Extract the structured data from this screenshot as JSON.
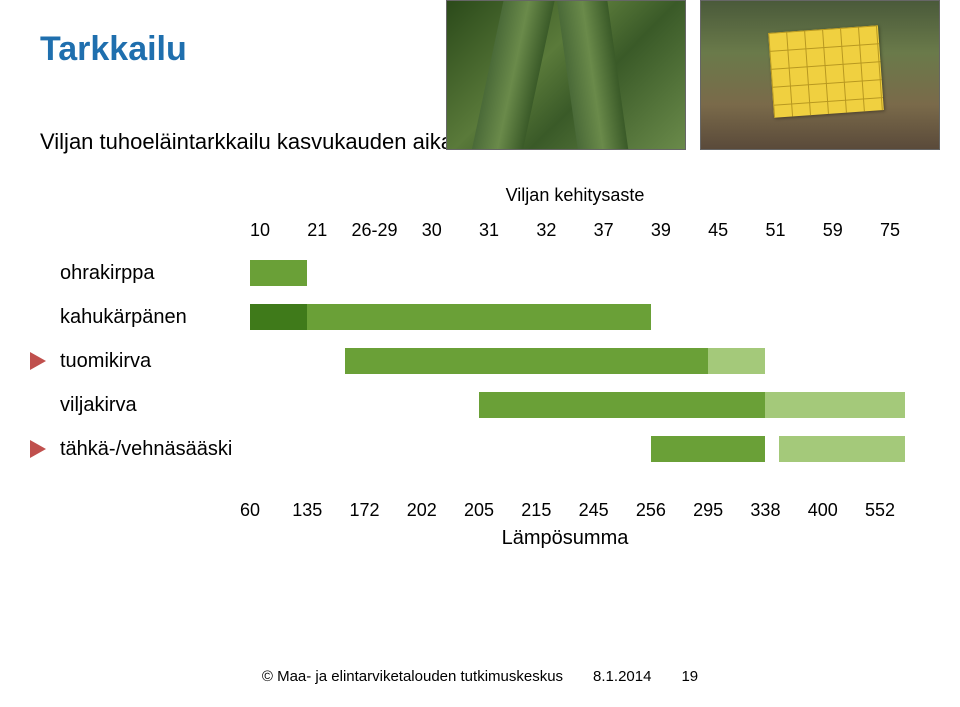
{
  "title": "Tarkkailu",
  "subtitle": "Viljan tuhoeläintarkkailu kasvukauden aikana",
  "top_axis_label": "Viljan kehitysaste",
  "bottom_axis_label": "Lämpösumma",
  "footer": {
    "copyright": "© Maa- ja elintarviketalouden tutkimuskeskus",
    "date": "8.1.2014",
    "page": "19"
  },
  "colors": {
    "green_main": "#6aa037",
    "green_dark": "#3f7a1a",
    "green_light": "#a4c97a",
    "title_blue": "#1f6fae",
    "marker_red": "#c0504d",
    "background": "#ffffff",
    "text": "#000000"
  },
  "axis_top": {
    "ticks": [
      "10",
      "21",
      "26-29",
      "30",
      "31",
      "32",
      "37",
      "39",
      "45",
      "51",
      "59",
      "75"
    ],
    "positions_pct": [
      0,
      9.09,
      18.18,
      27.27,
      36.36,
      45.45,
      54.55,
      63.64,
      72.73,
      81.82,
      90.91,
      100
    ]
  },
  "axis_bottom": {
    "ticks": [
      "60",
      "135",
      "172",
      "202",
      "205",
      "215",
      "245",
      "256",
      "295",
      "338",
      "400",
      "552"
    ],
    "positions_pct": [
      0,
      9.09,
      18.18,
      27.27,
      36.36,
      45.45,
      54.55,
      63.64,
      72.73,
      81.82,
      90.91,
      100
    ]
  },
  "pests": [
    {
      "name": "ohrakirppa",
      "marker": false,
      "segments": [
        {
          "start_pct": 0,
          "end_pct": 9.09,
          "color": "#6aa037"
        }
      ]
    },
    {
      "name": "kahukärpänen",
      "marker": false,
      "segments": [
        {
          "start_pct": 0,
          "end_pct": 9.09,
          "color": "#3f7a1a"
        },
        {
          "start_pct": 9.09,
          "end_pct": 63.64,
          "color": "#6aa037"
        }
      ]
    },
    {
      "name": "tuomikirva",
      "marker": true,
      "segments": [
        {
          "start_pct": 15,
          "end_pct": 72.73,
          "color": "#6aa037"
        },
        {
          "start_pct": 72.73,
          "end_pct": 81.82,
          "color": "#a4c97a"
        }
      ]
    },
    {
      "name": "viljakirva",
      "marker": false,
      "segments": [
        {
          "start_pct": 36.36,
          "end_pct": 81.82,
          "color": "#6aa037"
        },
        {
          "start_pct": 81.82,
          "end_pct": 104,
          "color": "#a4c97a"
        }
      ]
    },
    {
      "name": "tähkä-/vehnäsääski",
      "marker": true,
      "segments": [
        {
          "start_pct": 63.64,
          "end_pct": 81.82,
          "color": "#6aa037"
        },
        {
          "start_pct": 84,
          "end_pct": 104,
          "color": "#a4c97a"
        }
      ]
    }
  ]
}
